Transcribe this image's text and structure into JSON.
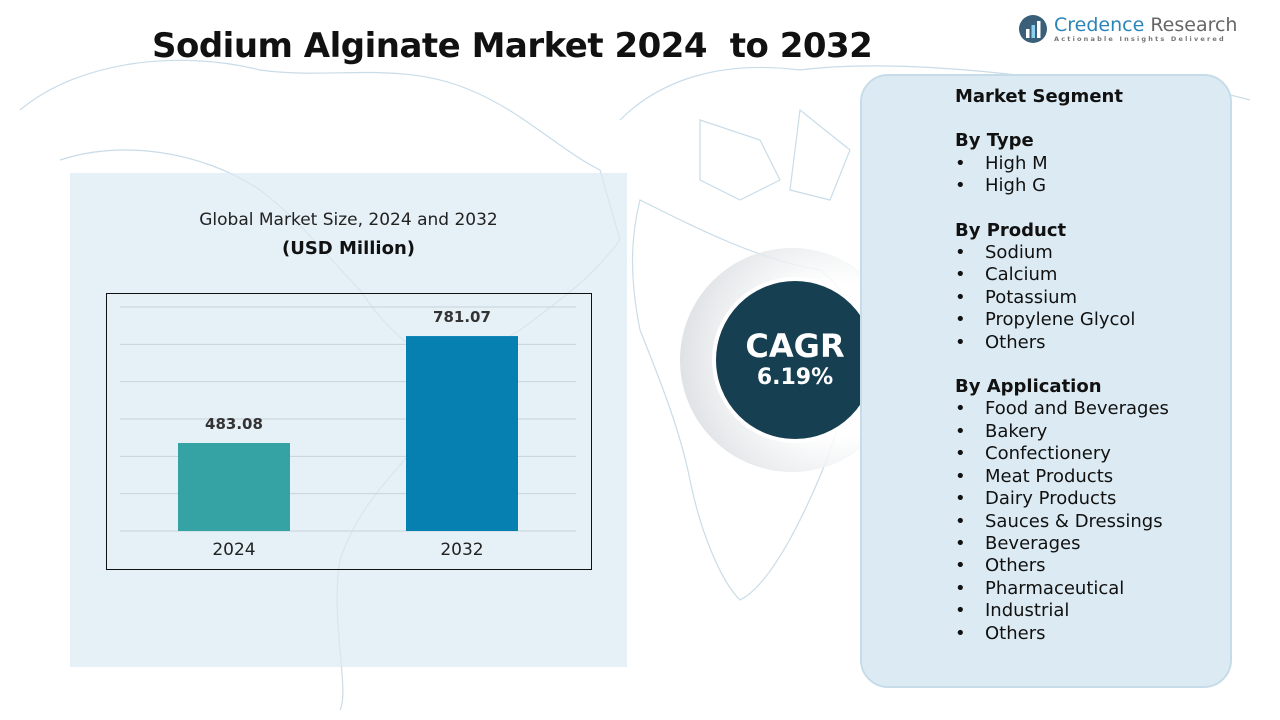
{
  "title": "Sodium Alginate Market 2024  to 2032",
  "logo": {
    "name_part1": "Credence",
    "name_part2": " Research",
    "tagline": "Actionable Insights Delivered"
  },
  "cagr": {
    "label": "CAGR",
    "value": "6.19%"
  },
  "colors": {
    "bar_2024": "#35a3a3",
    "bar_2032": "#0680b0",
    "cagr_circle": "#173f52",
    "panel": "#dcebf3"
  },
  "chart_data": {
    "type": "bar",
    "title": "Global Market Size, 2024 and 2032",
    "unit": "(USD Million)",
    "categories": [
      "2024",
      "2032"
    ],
    "values": [
      483.08,
      781.07
    ],
    "value_labels": [
      "483.08",
      "781.07"
    ],
    "ylim": [
      238,
      862
    ],
    "grid": true,
    "xlabel": "",
    "ylabel": ""
  },
  "segments": {
    "heading": "Market Segment",
    "groups": [
      {
        "title": "By Type",
        "items": [
          "High M",
          "High G"
        ]
      },
      {
        "title": "By Product",
        "items": [
          "Sodium",
          "Calcium",
          "Potassium",
          "Propylene Glycol",
          "Others"
        ]
      },
      {
        "title": "By Application",
        "items": [
          "Food and Beverages",
          "Bakery",
          "Confectionery",
          "Meat Products",
          "Dairy Products",
          "Sauces & Dressings",
          "Beverages",
          "Others",
          "Pharmaceutical",
          "Industrial",
          "Others"
        ]
      }
    ]
  }
}
